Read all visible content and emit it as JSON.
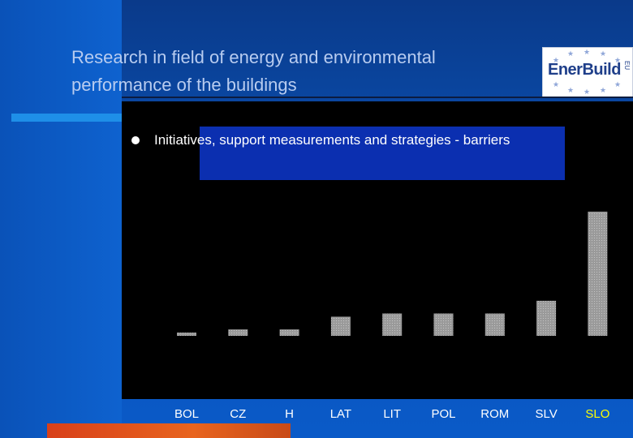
{
  "slide": {
    "title_line1": "Research in field of energy and environmental",
    "title_line2": "performance of the buildings",
    "bullet": "Initiatives, support measurements and strategies - barriers"
  },
  "logo": {
    "text": "EnerBuild",
    "side_text": "EU"
  },
  "colors": {
    "background": "#0b4fb0",
    "panel": "#000000",
    "highlight": "#0b2fb0",
    "bar": "#a8a8a8",
    "label_default": "#ffffff",
    "label_highlight": "#ffff00",
    "bottom_accent": "#e0501c"
  },
  "chart_data": {
    "type": "bar",
    "title": "",
    "xlabel": "",
    "ylabel": "",
    "categories": [
      "BOL",
      "CZ",
      "H",
      "LAT",
      "LIT",
      "POL",
      "ROM",
      "SLV",
      "SLO"
    ],
    "values": [
      1,
      2,
      2,
      6,
      7,
      7,
      7,
      11,
      39
    ],
    "ylim": [
      0,
      40
    ],
    "highlight_category": "SLO",
    "grid": false,
    "legend": "none"
  }
}
